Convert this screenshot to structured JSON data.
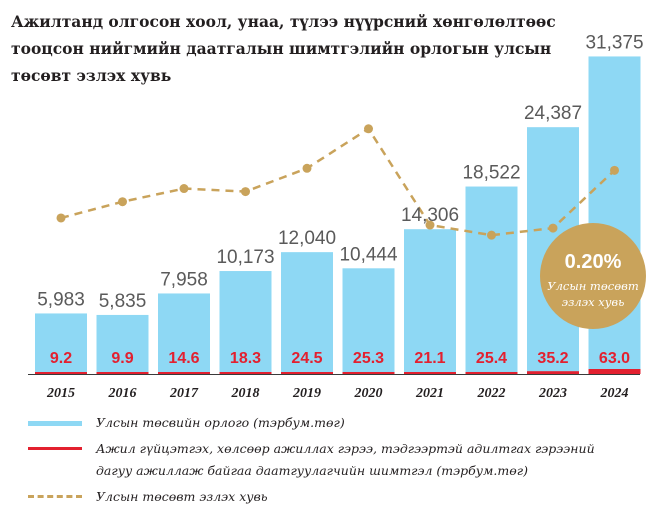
{
  "title": "Ажилтанд олгосон хоол, унаа, түлээ нүүрсний хөнгөлөлтөөс тооцсон нийгмийн даатгалын шимтгэлийн орлогын улсын төсөвт эзлэх хувь",
  "colors": {
    "bar": "#8ed8f4",
    "red": "#e3202f",
    "line": "#c9a35b",
    "badge": "#c9a35b",
    "text": "#5a5a5a",
    "axis": "#3a3a3a"
  },
  "chart_data": {
    "type": "bar",
    "categories": [
      "2015",
      "2016",
      "2017",
      "2018",
      "2019",
      "2020",
      "2021",
      "2022",
      "2023",
      "2024"
    ],
    "series": [
      {
        "name": "Улсын төсвийн орлого (тэрбум.төг)",
        "kind": "bar",
        "values": [
          5983,
          5835,
          7958,
          10173,
          12040,
          10444,
          14306,
          18522,
          24387,
          31375
        ],
        "labels": [
          "5,983",
          "5,835",
          "7,958",
          "10,173",
          "12,040",
          "10,444",
          "14,306",
          "18,522",
          "24,387",
          "31,375"
        ]
      },
      {
        "name": "Ажил гүйцэтгэх, хөлсөөр ажиллах гэрээ, тэдгээртэй адилтгах гэрээний дагуу ажиллаж байгаа даатгуулагчийн шимтгэл (тэрбум.төг)",
        "kind": "bar",
        "values": [
          9.2,
          9.9,
          14.6,
          18.3,
          24.5,
          25.3,
          21.1,
          25.4,
          35.2,
          63.0
        ],
        "labels": [
          "9.2",
          "9.9",
          "14.6",
          "18.3",
          "24.5",
          "25.3",
          "21.1",
          "25.4",
          "35.2",
          "63.0"
        ]
      },
      {
        "name": "Улсын төсөвт эзлэх хувь",
        "kind": "line",
        "values": [
          0.154,
          0.17,
          0.183,
          0.18,
          0.203,
          0.242,
          0.147,
          0.137,
          0.144,
          0.201
        ]
      }
    ],
    "ylim": [
      0,
      33000
    ],
    "line_ylim": [
      0,
      0.3
    ],
    "annotation": {
      "value": "0.20%",
      "text": "Улсын төсөвт эзлэх хувь"
    }
  },
  "legend": {
    "bar_label": "Улсын төсвийн орлого (тэрбум.төг)",
    "red_label": "Ажил гүйцэтгэх, хөлсөөр ажиллах гэрээ, тэдгээртэй адилтгах гэрээний дагуу ажиллаж байгаа даатгуулагчийн шимтгэл (тэрбум.төг)",
    "line_label": "Улсын төсөвт эзлэх хувь"
  }
}
